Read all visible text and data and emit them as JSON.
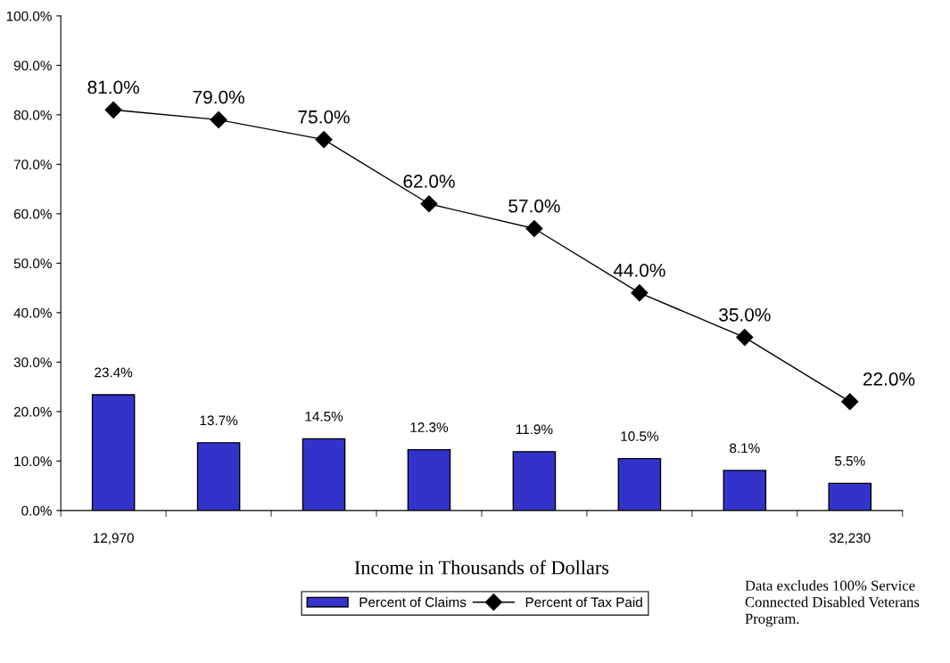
{
  "chart_data": {
    "type": "bar",
    "xlabel": "Income in Thousands of Dollars",
    "categories": [
      "12,970",
      null,
      null,
      null,
      null,
      null,
      null,
      "32,230"
    ],
    "series": [
      {
        "name": "Percent of Claims",
        "color": "#3333cc",
        "values": [
          23.4,
          13.7,
          14.5,
          12.3,
          11.9,
          10.5,
          8.1,
          5.5
        ],
        "value_labels": [
          "23.4%",
          "13.7%",
          "14.5%",
          "12.3%",
          "11.9%",
          "10.5%",
          "8.1%",
          "5.5%"
        ]
      },
      {
        "name": "Percent of Tax Paid",
        "type": "line",
        "color": "#000000",
        "marker": "diamond",
        "line_style": "solid",
        "values": [
          81.0,
          79.0,
          75.0,
          62.0,
          57.0,
          44.0,
          35.0,
          22.0
        ],
        "value_labels": [
          "81.0%",
          "79.0%",
          "75.0%",
          "62.0%",
          "57.0%",
          "44.0%",
          "35.0%",
          "22.0%"
        ]
      }
    ],
    "ylim": [
      0,
      100
    ],
    "yticks": [
      {
        "value": 0,
        "label": "0.0%"
      },
      {
        "value": 10,
        "label": "10.0%"
      },
      {
        "value": 20,
        "label": "20.0%"
      },
      {
        "value": 30,
        "label": "30.0%"
      },
      {
        "value": 40,
        "label": "40.0%"
      },
      {
        "value": 50,
        "label": "50.0%"
      },
      {
        "value": 60,
        "label": "60.0%"
      },
      {
        "value": 70,
        "label": "70.0%"
      },
      {
        "value": 80,
        "label": "80.0%"
      },
      {
        "value": 90,
        "label": "90.0%"
      },
      {
        "value": 100,
        "label": "100.0%"
      }
    ],
    "grid": false,
    "legend": "bottom",
    "annotations": [
      "Data excludes 100% Service Connected Disabled Veterans Program."
    ]
  }
}
